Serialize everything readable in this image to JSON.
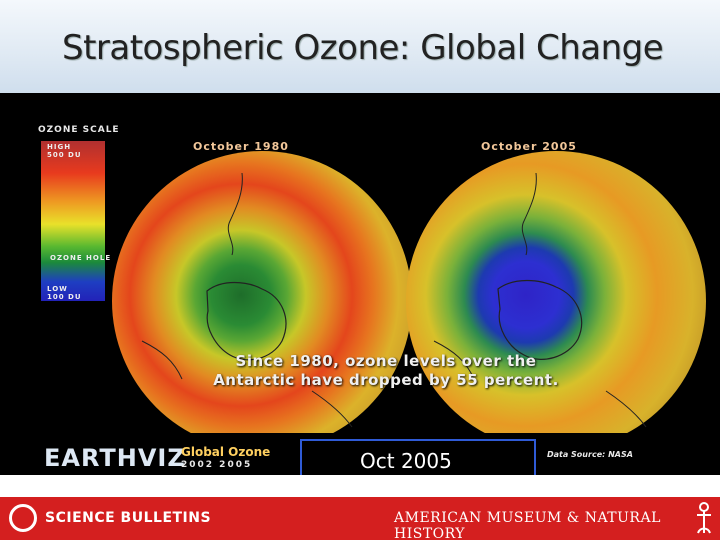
{
  "slide": {
    "title": "Stratospheric Ozone: Global Change"
  },
  "ozone_scale": {
    "label": "OZONE SCALE",
    "high_line1": "HIGH",
    "high_line2": "500 DU",
    "hole": "OZONE HOLE",
    "low_line1": "LOW",
    "low_line2": "100 DU"
  },
  "globes": [
    {
      "label": "October 1980"
    },
    {
      "label": "October 2005"
    }
  ],
  "caption": {
    "line1": "Since 1980, ozone levels over the",
    "line2": "Antarctic have dropped by 55 percent."
  },
  "earthviz": {
    "brand": "EARTHVIZ",
    "product": "Global Ozone",
    "years": "2002   2005",
    "date": "Oct 2005",
    "source": "Data Source: NASA"
  },
  "footer": {
    "left_brand": "SCIENCE BULLETINS",
    "right_brand": "AMERICAN MUSEUM & NATURAL HISTORY"
  },
  "colors": {
    "footer_red": "#d41f1f",
    "accent_blue": "#2f5bd6"
  }
}
